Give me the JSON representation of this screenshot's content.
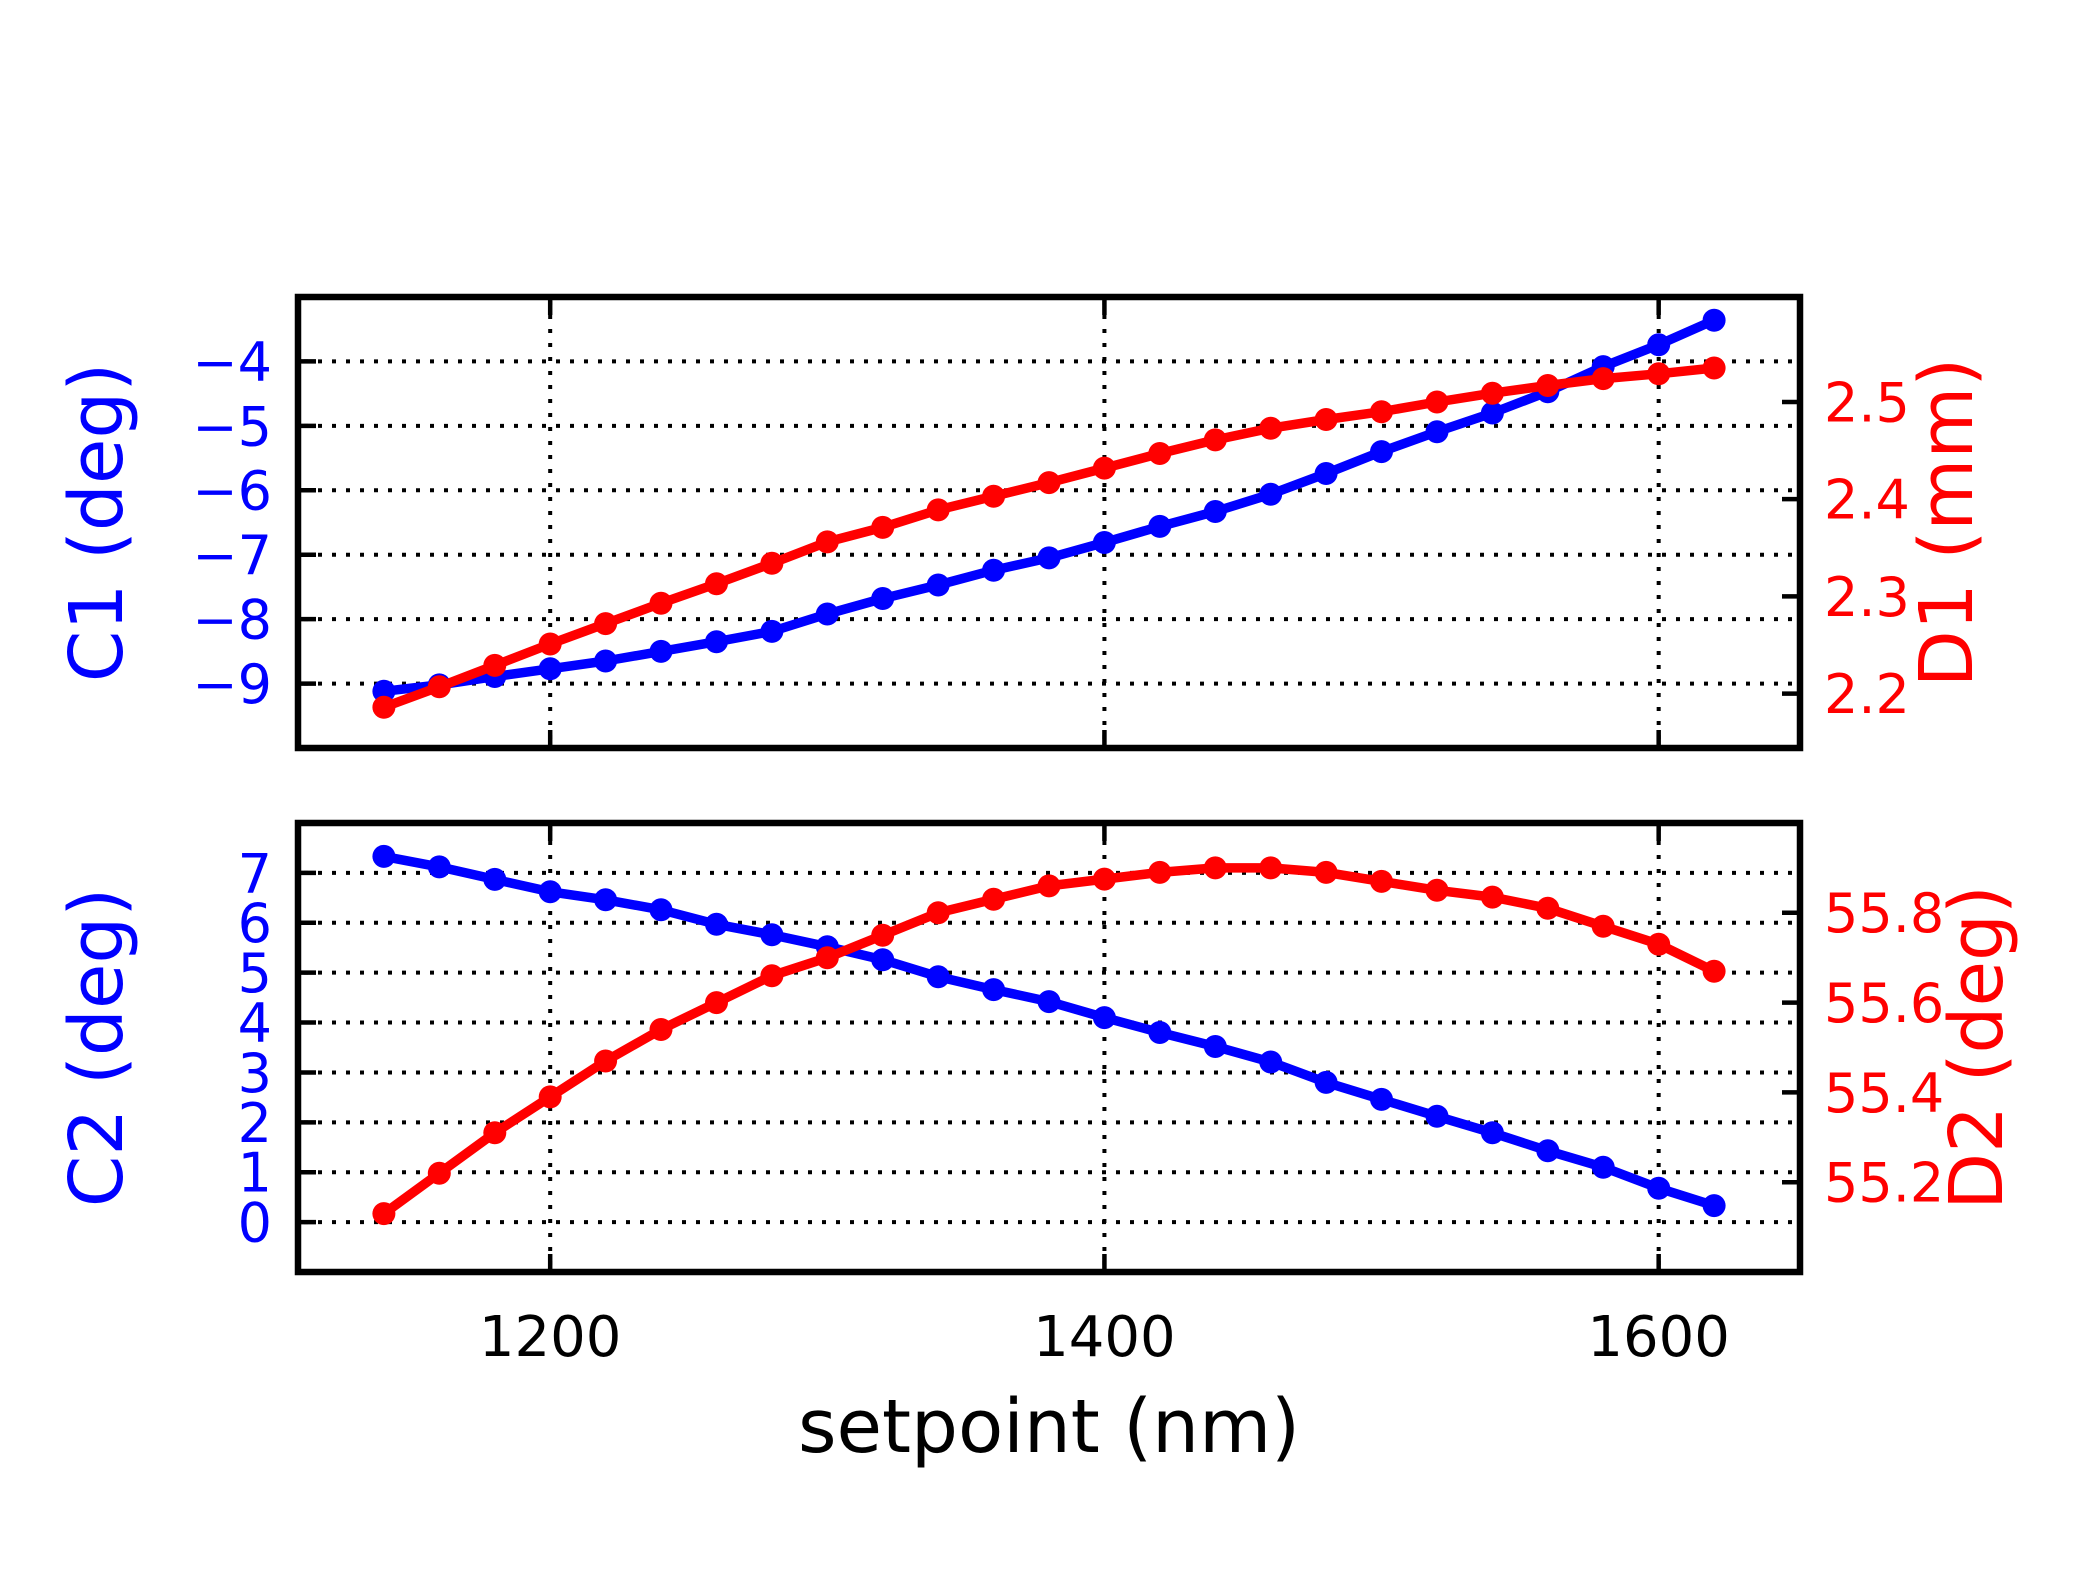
{
  "figure": {
    "background": "#ffffff",
    "title": ""
  },
  "chart_data": [
    {
      "type": "line",
      "position": "top",
      "title": "",
      "grid": "dotted",
      "legend": "none",
      "xlabel": "",
      "xlim": [
        1109,
        1651
      ],
      "x_major_ticks": [
        1200,
        1400,
        1600
      ],
      "x_tick_labels": [],
      "x": [
        1140,
        1160,
        1180,
        1200,
        1220,
        1240,
        1260,
        1280,
        1300,
        1320,
        1340,
        1360,
        1380,
        1400,
        1420,
        1440,
        1460,
        1480,
        1500,
        1520,
        1540,
        1560,
        1580,
        1600,
        1620
      ],
      "left_axis": {
        "label": "C1 (deg)",
        "color": "#0000ff",
        "lim": [
          -10,
          -3
        ],
        "major_ticks": [
          -9,
          -8,
          -7,
          -6,
          -5,
          -4
        ],
        "tick_labels": [
          "−9",
          "−8",
          "−7",
          "−6",
          "−5",
          "−4"
        ]
      },
      "right_axis": {
        "label": "D1 (mm)",
        "color": "#ff0000",
        "lim": [
          2.144,
          2.608
        ],
        "major_ticks": [
          2.2,
          2.3,
          2.4,
          2.5
        ],
        "tick_labels": [
          "2.2",
          "2.3",
          "2.4",
          "2.5"
        ]
      },
      "series": [
        {
          "name": "C1",
          "axis": "left",
          "color": "#0000ff",
          "marker": "circle",
          "values": [
            -9.12,
            -9.02,
            -8.89,
            -8.77,
            -8.65,
            -8.5,
            -8.35,
            -8.19,
            -7.92,
            -7.68,
            -7.47,
            -7.24,
            -7.05,
            -6.81,
            -6.56,
            -6.33,
            -6.06,
            -5.74,
            -5.4,
            -5.09,
            -4.8,
            -4.47,
            -4.08,
            -3.74,
            -3.36
          ]
        },
        {
          "name": "D1",
          "axis": "right",
          "color": "#ff0000",
          "marker": "circle",
          "values": [
            2.186,
            2.207,
            2.229,
            2.251,
            2.272,
            2.293,
            2.313,
            2.334,
            2.356,
            2.371,
            2.389,
            2.403,
            2.417,
            2.432,
            2.447,
            2.461,
            2.473,
            2.482,
            2.49,
            2.5,
            2.509,
            2.517,
            2.524,
            2.529,
            2.535
          ]
        }
      ]
    },
    {
      "type": "line",
      "position": "bottom",
      "title": "",
      "grid": "dotted",
      "legend": "none",
      "xlabel": "setpoint (nm)",
      "xlim": [
        1109,
        1651
      ],
      "x_major_ticks": [
        1200,
        1400,
        1600
      ],
      "x_tick_labels": [
        "1200",
        "1400",
        "1600"
      ],
      "x": [
        1140,
        1160,
        1180,
        1200,
        1220,
        1240,
        1260,
        1280,
        1300,
        1320,
        1340,
        1360,
        1380,
        1400,
        1420,
        1440,
        1460,
        1480,
        1500,
        1520,
        1540,
        1560,
        1580,
        1600,
        1620
      ],
      "left_axis": {
        "label": "C2 (deg)",
        "color": "#0000ff",
        "lim": [
          -1,
          8
        ],
        "major_ticks": [
          0,
          1,
          2,
          3,
          4,
          5,
          6,
          7
        ],
        "tick_labels": [
          "0",
          "1",
          "2",
          "3",
          "4",
          "5",
          "6",
          "7"
        ]
      },
      "right_axis": {
        "label": "D2 (deg)",
        "color": "#ff0000",
        "lim": [
          55.0,
          56.0
        ],
        "major_ticks": [
          55.2,
          55.4,
          55.6,
          55.8
        ],
        "tick_labels": [
          "55.2",
          "55.4",
          "55.6",
          "55.8"
        ]
      },
      "series": [
        {
          "name": "C2",
          "axis": "left",
          "color": "#0000ff",
          "marker": "circle",
          "values": [
            7.33,
            7.12,
            6.87,
            6.62,
            6.46,
            6.26,
            5.97,
            5.76,
            5.52,
            5.26,
            4.92,
            4.66,
            4.42,
            4.1,
            3.8,
            3.52,
            3.21,
            2.8,
            2.46,
            2.12,
            1.79,
            1.43,
            1.1,
            0.68,
            0.33
          ]
        },
        {
          "name": "D2",
          "axis": "right",
          "color": "#ff0000",
          "marker": "circle",
          "values": [
            55.13,
            55.22,
            55.31,
            55.39,
            55.47,
            55.54,
            55.6,
            55.66,
            55.7,
            55.75,
            55.8,
            55.83,
            55.86,
            55.875,
            55.89,
            55.9,
            55.9,
            55.89,
            55.87,
            55.85,
            55.835,
            55.81,
            55.77,
            55.73,
            55.67
          ]
        }
      ]
    }
  ]
}
